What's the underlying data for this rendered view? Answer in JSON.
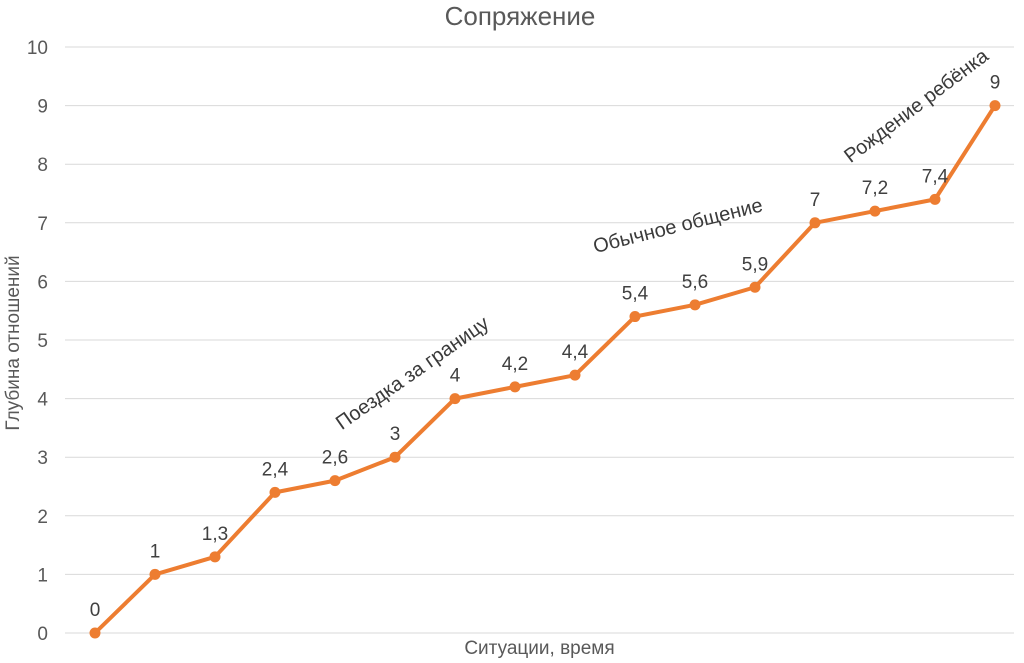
{
  "chart": {
    "title": "Сопряжение",
    "ylabel": "Глубина отношений",
    "xlabel": "Ситуации, время"
  },
  "chart_data": {
    "type": "line",
    "title": "Сопряжение",
    "xlabel": "Ситуации, время",
    "ylabel": "Глубина отношений",
    "ylim": [
      0,
      10
    ],
    "y_ticks": [
      0,
      1,
      2,
      3,
      4,
      5,
      6,
      7,
      8,
      9,
      10
    ],
    "grid": true,
    "legend_position": "none",
    "series": [
      {
        "name": "Сопряжение",
        "color": "#ED7D31",
        "values": [
          0,
          1,
          1.3,
          2.4,
          2.6,
          3,
          4,
          4.2,
          4.4,
          5.4,
          5.6,
          5.9,
          7,
          7.2,
          7.4,
          9
        ],
        "point_labels": [
          "0",
          "1",
          "1,3",
          "2,4",
          "2,6",
          "3",
          "4",
          "4,2",
          "4,4",
          "5,4",
          "5,6",
          "5,9",
          "7",
          "7,2",
          "7,4",
          "9"
        ]
      }
    ],
    "annotations": [
      {
        "text": "Поездка за границу",
        "x_index": 5.3,
        "y_value": 4.42,
        "angle": -35
      },
      {
        "text": "Обычное общение",
        "x_index": 9.72,
        "y_value": 6.93,
        "angle": -14
      },
      {
        "text": "Рождение ребёнка",
        "x_index": 13.7,
        "y_value": 8.98,
        "angle": -37
      }
    ],
    "colors": {
      "line": "#ED7D31",
      "grid": "#D9D9D9",
      "title_text": "#595959",
      "axis_text": "#595959",
      "data_label_text": "#404040",
      "annotation_text": "#3a3a3a"
    }
  }
}
